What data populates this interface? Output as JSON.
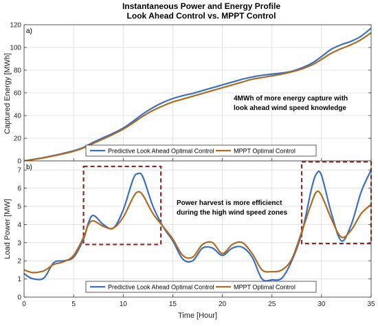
{
  "chart_data": [
    {
      "type": "line",
      "panel": "a)",
      "title": "Instantaneous Power and Energy Profile",
      "subtitle": "Look Ahead Control vs. MPPT Control",
      "xlabel": "",
      "ylabel": "Captured Energy [MWh]",
      "xlim": [
        0,
        35
      ],
      "ylim": [
        0,
        120
      ],
      "xticks": [
        0,
        5,
        10,
        15,
        20,
        25,
        30,
        35
      ],
      "yticks": [
        0,
        20,
        40,
        60,
        80,
        100,
        120
      ],
      "grid": true,
      "legend_position": "bottom-center",
      "annotation": [
        "4MWh of more energy capture with",
        "look ahead wind speed knowledge"
      ],
      "series": [
        {
          "name": "Predictive Look Ahead Optimal Control",
          "color": "#3a6fc1",
          "x": [
            0,
            1,
            2,
            3,
            4,
            5,
            6,
            7,
            8,
            9,
            10,
            11,
            12,
            13,
            14,
            15,
            16,
            17,
            18,
            19,
            20,
            21,
            22,
            23,
            24,
            25,
            26,
            27,
            28,
            29,
            30,
            31,
            32,
            33,
            34,
            35
          ],
          "y": [
            0,
            1.5,
            3,
            4.8,
            6.8,
            9,
            12,
            16.5,
            20.5,
            24.5,
            29,
            35,
            41.5,
            47,
            51.5,
            55,
            57.5,
            59.5,
            62,
            64.5,
            67,
            69.5,
            72,
            74,
            75.5,
            76.5,
            77.5,
            79,
            82,
            86,
            92,
            98.5,
            102.5,
            105.5,
            110,
            117
          ]
        },
        {
          "name": "MPPT Optimal Control",
          "color": "#b06a1f",
          "x": [
            0,
            1,
            2,
            3,
            4,
            5,
            6,
            7,
            8,
            9,
            10,
            11,
            12,
            13,
            14,
            15,
            16,
            17,
            18,
            19,
            20,
            21,
            22,
            23,
            24,
            25,
            26,
            27,
            28,
            29,
            30,
            31,
            32,
            33,
            34,
            35
          ],
          "y": [
            0,
            1.3,
            2.8,
            4.5,
            6.4,
            8.5,
            11.5,
            15.5,
            19.5,
            23.5,
            28,
            33.5,
            39.5,
            44.5,
            48.5,
            52,
            54.5,
            57,
            59.5,
            62,
            64.5,
            67,
            69.5,
            72,
            73.5,
            75,
            76.5,
            78.5,
            81,
            84.5,
            89.5,
            95,
            99,
            102.5,
            107,
            113
          ]
        }
      ]
    },
    {
      "type": "line",
      "panel": "b)",
      "xlabel": "Time [Hour]",
      "ylabel": "Load Power [MW]",
      "xlim": [
        0,
        35
      ],
      "ylim": [
        0,
        7.5
      ],
      "xticks": [
        0,
        5,
        10,
        15,
        20,
        25,
        30,
        35
      ],
      "yticks": [
        0,
        1,
        2,
        3,
        4,
        5,
        6,
        7
      ],
      "grid": true,
      "legend_position": "bottom-center",
      "annotation": [
        "Power harvest is more efficienct",
        "during the high wind speed zones"
      ],
      "highlight_zones": [
        {
          "x": [
            6,
            13.8
          ],
          "y": [
            2.9,
            7.2
          ],
          "color": "#8b2a20"
        },
        {
          "x": [
            28,
            35
          ],
          "y": [
            2.95,
            7.45
          ],
          "color": "#8b2a20"
        }
      ],
      "series": [
        {
          "name": "Predictive Look Ahead Optimal Control",
          "color": "#3a6fc1",
          "x": [
            0,
            0.5,
            1,
            2,
            3,
            4,
            5,
            6,
            6.5,
            7,
            8,
            9,
            10,
            11,
            11.5,
            12,
            13,
            14,
            15,
            16,
            17,
            18,
            19,
            20,
            21,
            22,
            23,
            24,
            25,
            26,
            27,
            28,
            29,
            29.5,
            30,
            31,
            32,
            33,
            34,
            35
          ],
          "y": [
            1.3,
            1.1,
            1.0,
            1.05,
            1.9,
            2.0,
            2.2,
            3.2,
            4.1,
            4.5,
            4.0,
            3.8,
            4.8,
            6.5,
            6.8,
            6.6,
            5.0,
            3.9,
            3.1,
            2.1,
            2.0,
            2.7,
            2.7,
            2.3,
            2.7,
            2.75,
            2.2,
            1.0,
            0.95,
            1.05,
            2.0,
            3.5,
            6.0,
            6.8,
            6.7,
            4.6,
            3.1,
            4.0,
            5.8,
            7.0
          ]
        },
        {
          "name": "MPPT Optimal Control",
          "color": "#b06a1f",
          "x": [
            0,
            0.5,
            1,
            2,
            3,
            4,
            5,
            6,
            6.5,
            7,
            8,
            9,
            10,
            11,
            11.5,
            12,
            13,
            14,
            15,
            16,
            17,
            18,
            19,
            20,
            21,
            22,
            23,
            24,
            25,
            26,
            27,
            28,
            29,
            29.5,
            30,
            31,
            32,
            33,
            34,
            35
          ],
          "y": [
            1.5,
            1.4,
            1.35,
            1.45,
            1.8,
            1.95,
            2.3,
            3.3,
            4.0,
            4.2,
            3.9,
            3.8,
            4.4,
            5.5,
            5.8,
            5.6,
            4.6,
            3.9,
            3.2,
            2.3,
            2.2,
            2.9,
            3.0,
            2.4,
            2.9,
            3.0,
            2.4,
            1.5,
            1.4,
            1.5,
            2.1,
            3.6,
            5.2,
            5.8,
            5.6,
            4.3,
            3.3,
            3.7,
            4.6,
            5.1
          ]
        }
      ]
    }
  ]
}
